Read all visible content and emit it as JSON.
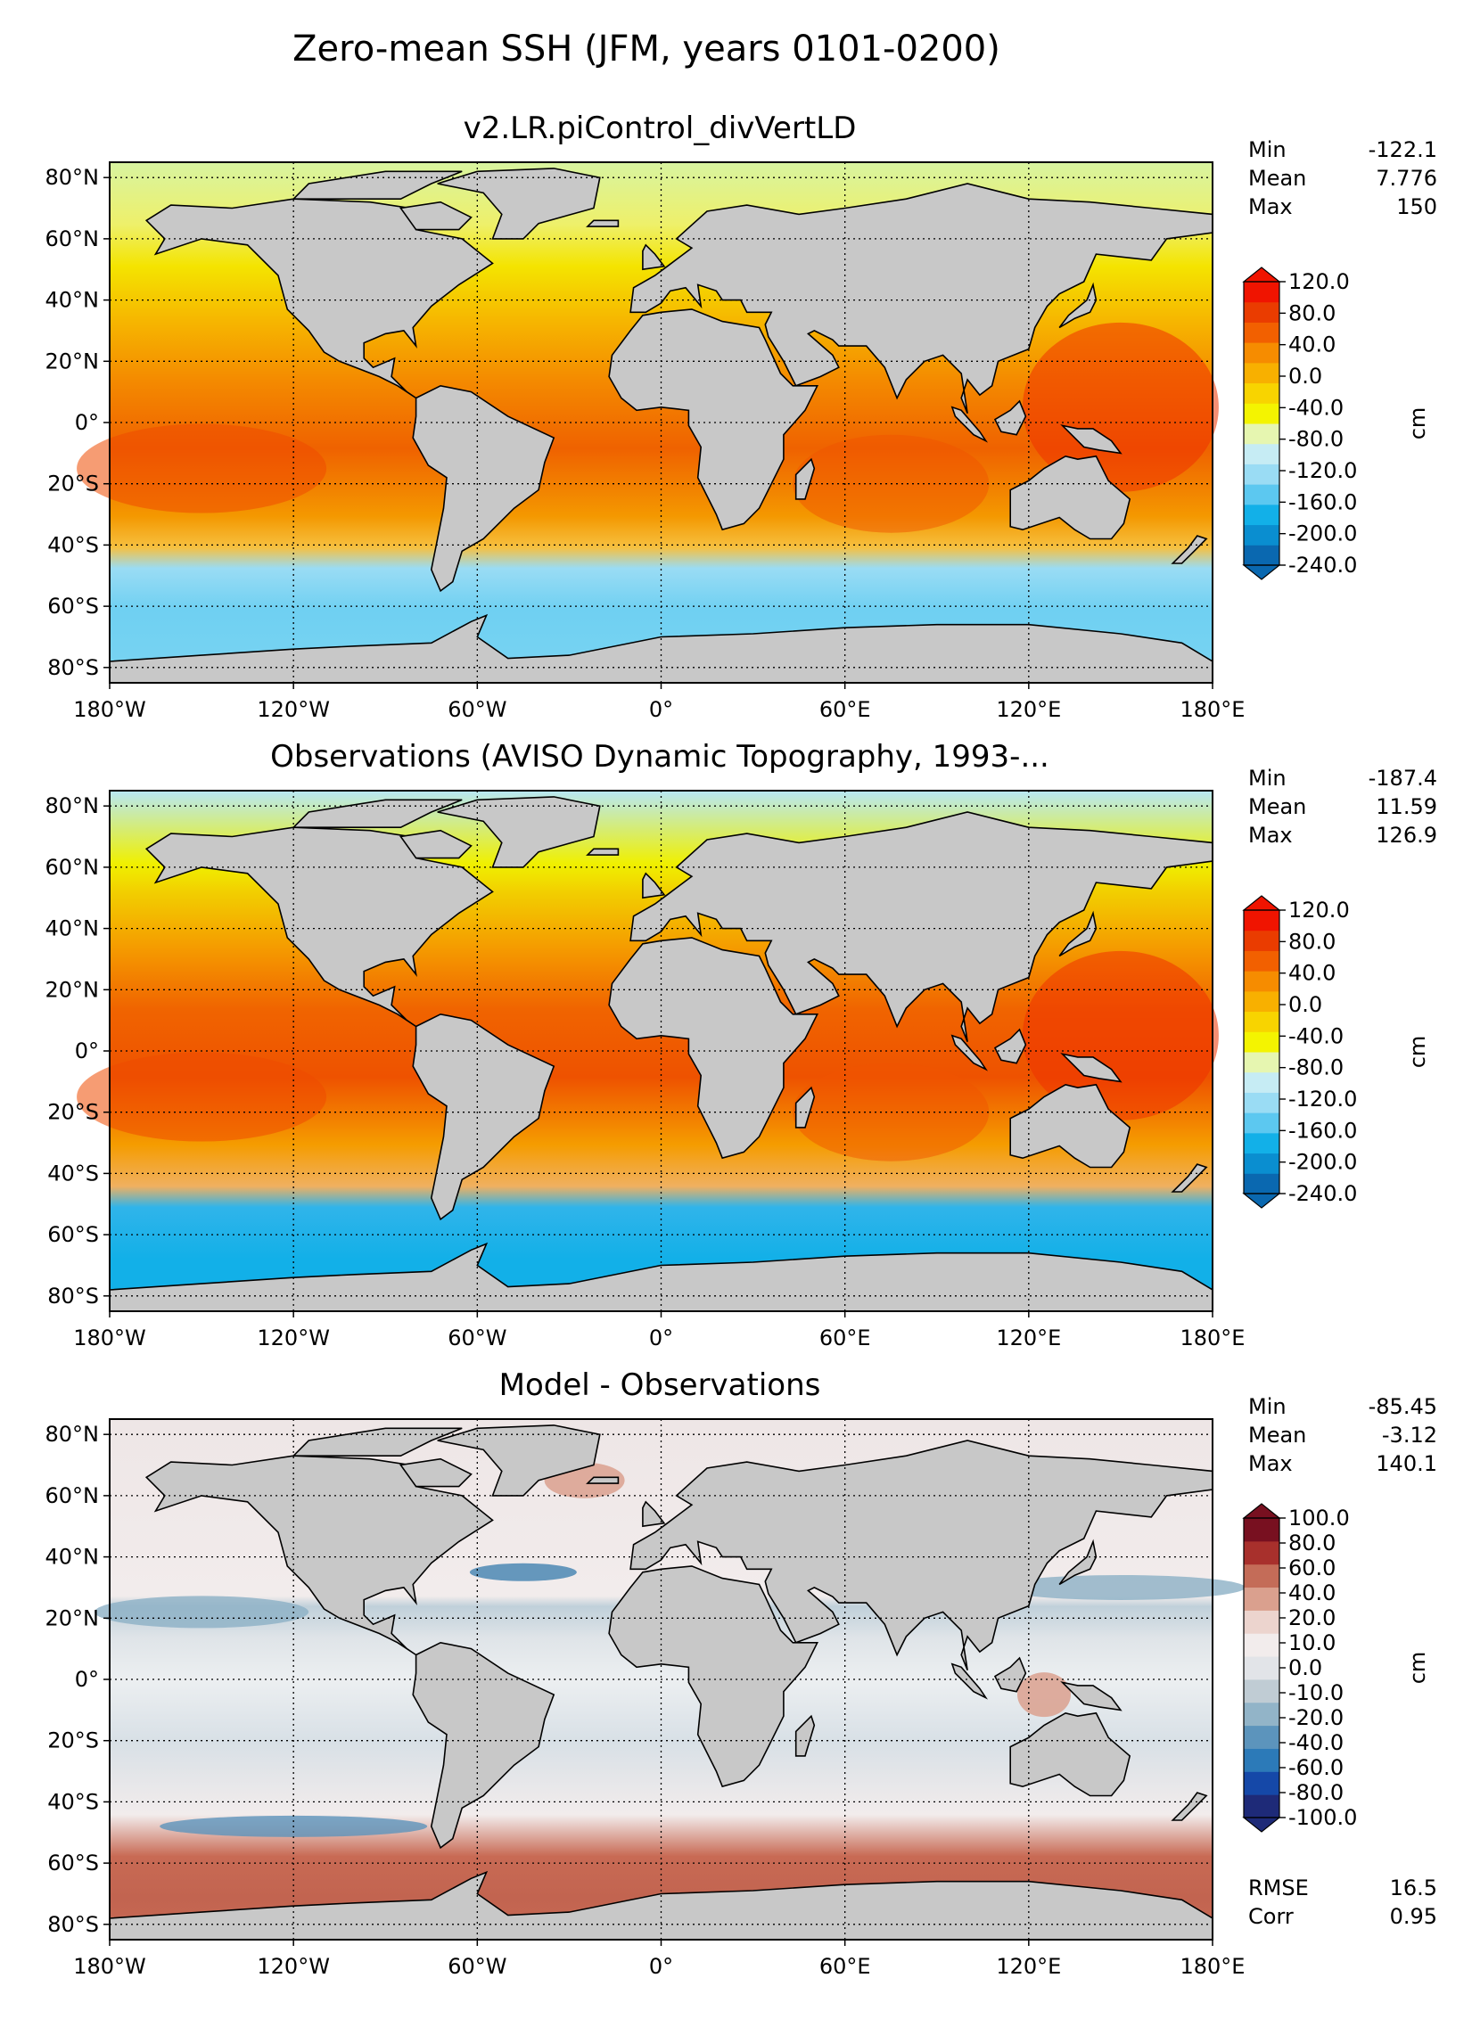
{
  "figure": {
    "title": "Zero-mean SSH (JFM, years 0101-0200)"
  },
  "colors": {
    "land": "#c8c8c8",
    "ssh_scale": [
      "#0a68b0",
      "#0a8ed0",
      "#12b0e8",
      "#5cc8f0",
      "#9adcf4",
      "#c6ecf4",
      "#e6f6b0",
      "#f4f400",
      "#f8d400",
      "#f8b000",
      "#f68c00",
      "#f26000",
      "#ea3c00",
      "#f01400"
    ],
    "diff_scale": [
      "#1e2a78",
      "#1548a8",
      "#2c7ab8",
      "#5c94bc",
      "#92b4c8",
      "#c0ccd4",
      "#e2e4e8",
      "#f2ecec",
      "#ecd4ce",
      "#daa08e",
      "#c46c58",
      "#a8302c",
      "#781020"
    ]
  },
  "stats_labels": {
    "min": "Min",
    "mean": "Mean",
    "max": "Max",
    "rmse": "RMSE",
    "corr": "Corr"
  },
  "chart_data": [
    {
      "type": "heatmap",
      "title": "v2.LR.piControl_divVertLD",
      "projection": "plate-carree",
      "xlim": [
        -180,
        180
      ],
      "ylim": [
        -85,
        85
      ],
      "xticks": [
        "180°W",
        "120°W",
        "60°W",
        "0°",
        "60°E",
        "120°E",
        "180°E"
      ],
      "yticks": [
        "80°N",
        "60°N",
        "40°N",
        "20°N",
        "0°",
        "20°S",
        "40°S",
        "60°S",
        "80°S"
      ],
      "grid": true,
      "colorbar": {
        "label": "cm",
        "extend": "both",
        "ticks": [
          "120.0",
          "80.0",
          "40.0",
          "0.0",
          "-40.0",
          "-80.0",
          "-120.0",
          "-160.0",
          "-200.0",
          "-240.0"
        ]
      },
      "stats": {
        "min": "-122.1",
        "mean": "7.776",
        "max": "150"
      }
    },
    {
      "type": "heatmap",
      "title": "Observations (AVISO Dynamic Topography, 1993-...",
      "projection": "plate-carree",
      "xlim": [
        -180,
        180
      ],
      "ylim": [
        -85,
        85
      ],
      "xticks": [
        "180°W",
        "120°W",
        "60°W",
        "0°",
        "60°E",
        "120°E",
        "180°E"
      ],
      "yticks": [
        "80°N",
        "60°N",
        "40°N",
        "20°N",
        "0°",
        "20°S",
        "40°S",
        "60°S",
        "80°S"
      ],
      "grid": true,
      "colorbar": {
        "label": "cm",
        "extend": "both",
        "ticks": [
          "120.0",
          "80.0",
          "40.0",
          "0.0",
          "-40.0",
          "-80.0",
          "-120.0",
          "-160.0",
          "-200.0",
          "-240.0"
        ]
      },
      "stats": {
        "min": "-187.4",
        "mean": "11.59",
        "max": "126.9"
      }
    },
    {
      "type": "heatmap",
      "title": "Model - Observations",
      "projection": "plate-carree",
      "xlim": [
        -180,
        180
      ],
      "ylim": [
        -85,
        85
      ],
      "xticks": [
        "180°W",
        "120°W",
        "60°W",
        "0°",
        "60°E",
        "120°E",
        "180°E"
      ],
      "yticks": [
        "80°N",
        "60°N",
        "40°N",
        "20°N",
        "0°",
        "20°S",
        "40°S",
        "60°S",
        "80°S"
      ],
      "grid": true,
      "colorbar": {
        "label": "cm",
        "extend": "both",
        "ticks": [
          "100.0",
          "80.0",
          "60.0",
          "40.0",
          "20.0",
          "10.0",
          "0.0",
          "-10.0",
          "-20.0",
          "-40.0",
          "-60.0",
          "-80.0",
          "-100.0"
        ]
      },
      "stats": {
        "min": "-85.45",
        "mean": "-3.12",
        "max": "140.1",
        "rmse": "16.5",
        "corr": "0.95"
      }
    }
  ]
}
